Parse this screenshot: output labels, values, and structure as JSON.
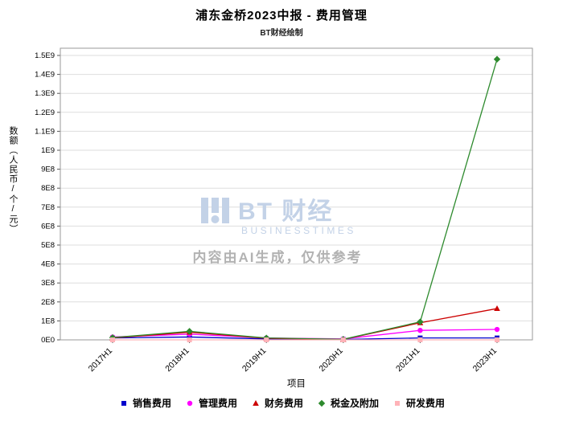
{
  "chart_data": {
    "type": "line",
    "title": "浦东金桥2023中报 - 费用管理",
    "subtitle": "BT财经绘制",
    "xlabel": "项目",
    "ylabel": "数额（人民币/个/元）",
    "categories": [
      "2017H1",
      "2018H1",
      "2019H1",
      "2020H1",
      "2021H1",
      "2023H1"
    ],
    "ylim": [
      0,
      1500000000.0
    ],
    "grid": "horizontal",
    "legend_position": "bottom",
    "yticks": [
      {
        "v": 0,
        "label": "0E0"
      },
      {
        "v": 100000000.0,
        "label": "1E8"
      },
      {
        "v": 200000000.0,
        "label": "2E8"
      },
      {
        "v": 300000000.0,
        "label": "3E8"
      },
      {
        "v": 400000000.0,
        "label": "4E8"
      },
      {
        "v": 500000000.0,
        "label": "5E8"
      },
      {
        "v": 600000000.0,
        "label": "6E8"
      },
      {
        "v": 700000000.0,
        "label": "7E8"
      },
      {
        "v": 800000000.0,
        "label": "8E8"
      },
      {
        "v": 900000000.0,
        "label": "9E8"
      },
      {
        "v": 1000000000.0,
        "label": "1E9"
      },
      {
        "v": 1100000000.0,
        "label": "1.1E9"
      },
      {
        "v": 1200000000.0,
        "label": "1.2E9"
      },
      {
        "v": 1300000000.0,
        "label": "1.3E9"
      },
      {
        "v": 1400000000.0,
        "label": "1.4E9"
      },
      {
        "v": 1500000000.0,
        "label": "1.5E9"
      }
    ],
    "series": [
      {
        "name": "销售费用",
        "color": "#0000cc",
        "marker": "square",
        "values": [
          10000000.0,
          15000000.0,
          5000000.0,
          2000000.0,
          10000000.0,
          10000000.0
        ]
      },
      {
        "name": "管理费用",
        "color": "#ff00ff",
        "marker": "circle",
        "values": [
          15000000.0,
          30000000.0,
          10000000.0,
          5000000.0,
          50000000.0,
          55000000.0
        ]
      },
      {
        "name": "财务费用",
        "color": "#cc0000",
        "marker": "triangle",
        "values": [
          10000000.0,
          40000000.0,
          8000000.0,
          2000000.0,
          90000000.0,
          165000000.0
        ]
      },
      {
        "name": "税金及附加",
        "color": "#2d8a2d",
        "marker": "diamond",
        "values": [
          12000000.0,
          45000000.0,
          10000000.0,
          3000000.0,
          95000000.0,
          1480000000.0
        ]
      },
      {
        "name": "研发费用",
        "color": "#ffb3b8",
        "marker": "square",
        "values": [
          0,
          0,
          0,
          0,
          0,
          0
        ]
      }
    ],
    "watermark": {
      "logo_text": "BT 财经",
      "logo_sub": "BUSINESSTIMES",
      "ai_note": "内容由AI生成，仅供参考",
      "logo_color": "#c3d2e7",
      "note_color": "#b2b2b2"
    },
    "colors": {
      "grid": "#dedede",
      "plot_border": "#9a9a9a",
      "tick": "#555555"
    }
  }
}
